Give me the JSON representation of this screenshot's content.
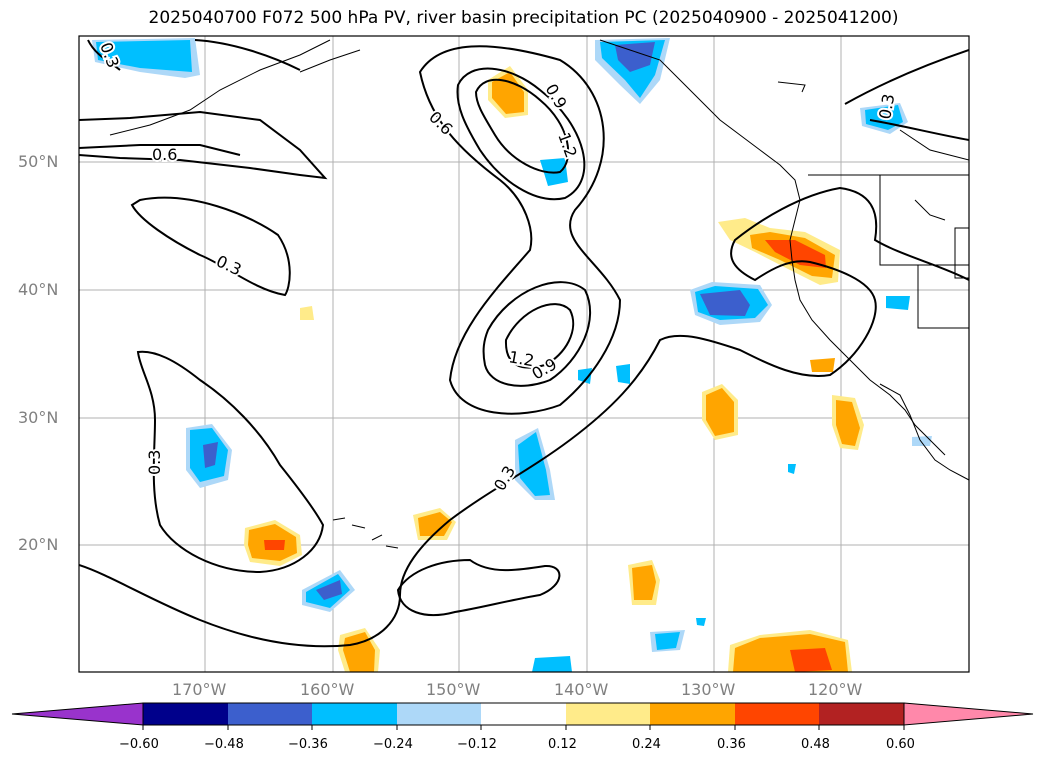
{
  "title": "2025040700 F072 500 hPa PV, river basin precipitation PC (2025040900 - 2025041200)",
  "lat_labels": [
    "50°N",
    "40°N",
    "30°N",
    "20°N"
  ],
  "lon_labels": [
    "170°W",
    "160°W",
    "150°W",
    "140°W",
    "130°W",
    "120°W"
  ],
  "contour_labels": [
    "0.6",
    "0.3",
    "0.6",
    "0.9",
    "1.2",
    "1.2",
    "0.9",
    "0.3",
    "0.3",
    "0.3",
    "0.3"
  ],
  "colorbar": {
    "ticks": [
      "−0.60",
      "−0.48",
      "−0.36",
      "−0.24",
      "−0.12",
      "0.12",
      "0.24",
      "0.36",
      "0.48",
      "0.60"
    ],
    "colors": [
      "#9933cc",
      "#00008b",
      "#3c5fcd",
      "#00bfff",
      "#add8f8",
      "#ffffff",
      "#ffeb8a",
      "#ffa500",
      "#ff4500",
      "#b22222",
      "#ff88aa"
    ]
  }
}
